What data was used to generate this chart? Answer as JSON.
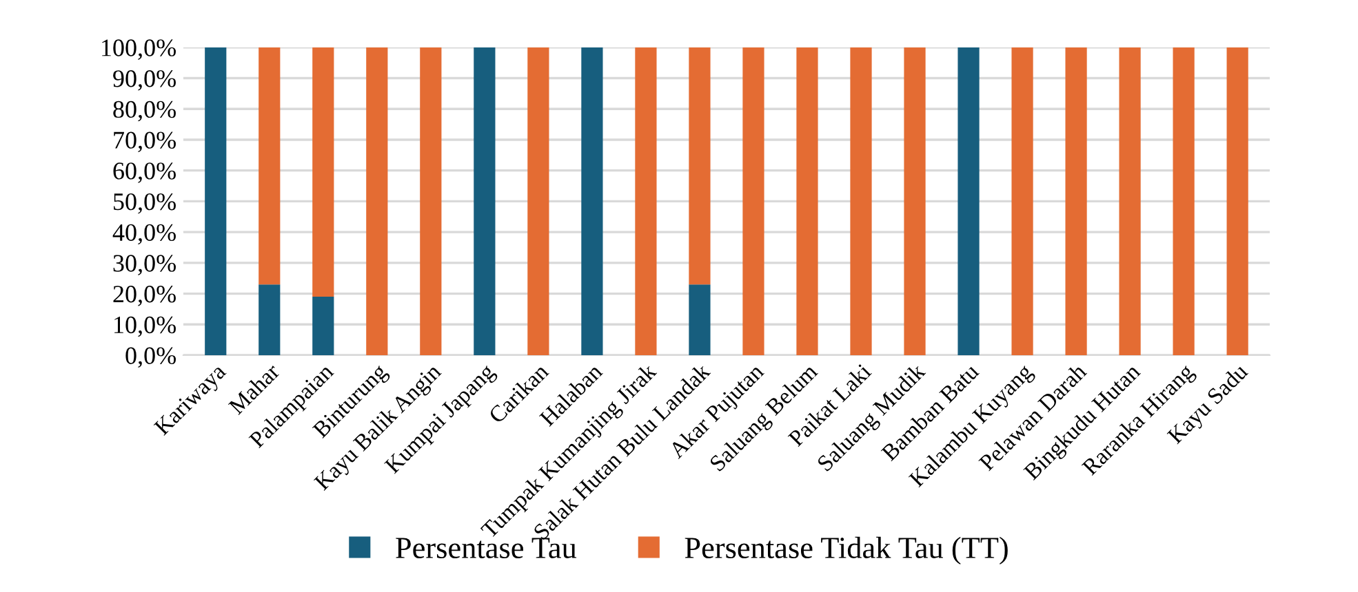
{
  "chart_data": {
    "type": "bar",
    "stacked": true,
    "categories": [
      "Kariwaya",
      "Mahar",
      "Palampaian",
      "Binturung",
      "Kayu Balik Angin",
      "Kumpai Japang",
      "Carikan",
      "Halaban",
      "Tumpak Kumanjing Jirak",
      "Salak Hutan Bulu Landak",
      "Akar Pujutan",
      "Saluang Belum",
      "Paikat Laki",
      "Saluang Mudik",
      "Bamban Batu",
      "Kalambu Kuyang",
      "Pelawan Darah",
      "Bingkudu Hutan",
      "Raranka Hirang",
      "Kayu Sadu"
    ],
    "series": [
      {
        "name": "Persentase Tau",
        "color": "#175e7e",
        "values": [
          100,
          23,
          19,
          0,
          0,
          100,
          0,
          100,
          0,
          23,
          0,
          0,
          0,
          0,
          100,
          0,
          0,
          0,
          0,
          0
        ]
      },
      {
        "name": "Persentase Tidak Tau (TT)",
        "color": "#e46c33",
        "values": [
          0,
          77,
          81,
          100,
          100,
          0,
          100,
          0,
          100,
          77,
          100,
          100,
          100,
          100,
          0,
          100,
          100,
          100,
          100,
          100
        ]
      }
    ],
    "ylim": [
      0,
      100
    ],
    "yticks": [
      {
        "value": 0,
        "label": "0,0%"
      },
      {
        "value": 10,
        "label": "10,0%"
      },
      {
        "value": 20,
        "label": "20,0%"
      },
      {
        "value": 30,
        "label": "30,0%"
      },
      {
        "value": 40,
        "label": "40,0%"
      },
      {
        "value": 50,
        "label": "50,0%"
      },
      {
        "value": 60,
        "label": "60,0%"
      },
      {
        "value": 70,
        "label": "70,0%"
      },
      {
        "value": 80,
        "label": "80,0%"
      },
      {
        "value": 90,
        "label": "90,0%"
      },
      {
        "value": 100,
        "label": "100,0%"
      }
    ],
    "grid": "y",
    "legend": "bottom"
  }
}
